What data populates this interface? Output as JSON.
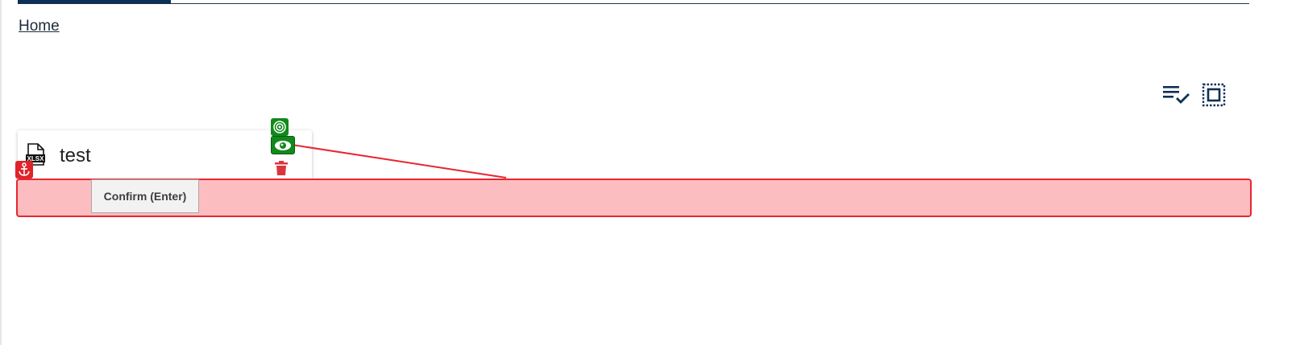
{
  "breadcrumb": {
    "home": "Home"
  },
  "toolbar": {
    "select_list_icon": "playlist-check-icon",
    "select_all_icon": "select-frame-icon"
  },
  "file_card": {
    "title": "test",
    "file_type_label": "XLSX"
  },
  "overlay": {
    "confirm_label": "Confirm (Enter)",
    "anchor_icon": "anchor-icon",
    "target_icon": "target-icon",
    "preview_icon": "eye-icon"
  },
  "colors": {
    "brand_navy": "#0e2f57",
    "danger_red": "#e0232b",
    "drop_zone_fill": "#fcbdc1",
    "success_green": "#12891b",
    "trash_red": "#d9363e"
  }
}
